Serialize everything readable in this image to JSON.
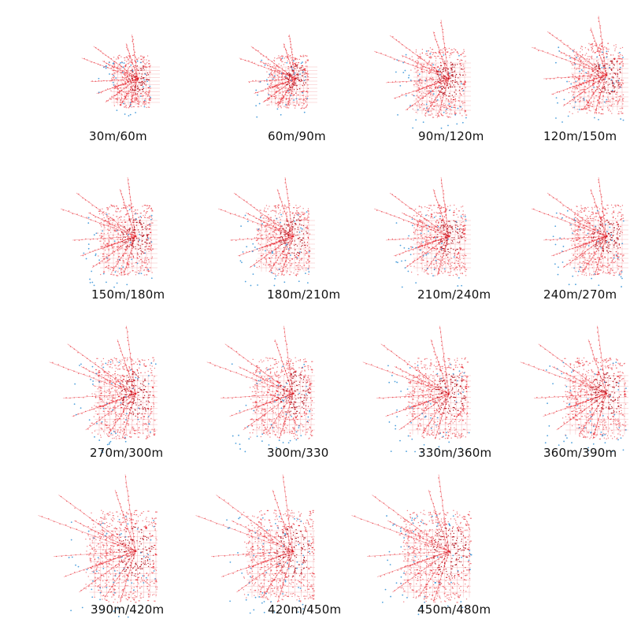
{
  "figure": {
    "colors": {
      "dominant": "#e8202a",
      "dominant_dark": "#b0101a",
      "secondary": "#2f8fd6",
      "background": "#ffffff"
    },
    "panels": [
      {
        "label": "30m/60m",
        "extent": "small"
      },
      {
        "label": "60m/90m",
        "extent": "small"
      },
      {
        "label": "90m/120m",
        "extent": "medium"
      },
      {
        "label": "120m/150m",
        "extent": "medium"
      },
      {
        "label": "150m/180m",
        "extent": "medium"
      },
      {
        "label": "180m/210m",
        "extent": "medium"
      },
      {
        "label": "210m/240m",
        "extent": "medium"
      },
      {
        "label": "240m/270m",
        "extent": "medium"
      },
      {
        "label": "270m/300m",
        "extent": "large"
      },
      {
        "label": "300m/330",
        "extent": "large"
      },
      {
        "label": "330m/360m",
        "extent": "large"
      },
      {
        "label": "360m/390m",
        "extent": "large"
      },
      {
        "label": "390m/420m",
        "extent": "xlarge"
      },
      {
        "label": "420m/450m",
        "extent": "xlarge"
      },
      {
        "label": "450m/480m",
        "extent": "xlarge"
      }
    ]
  }
}
